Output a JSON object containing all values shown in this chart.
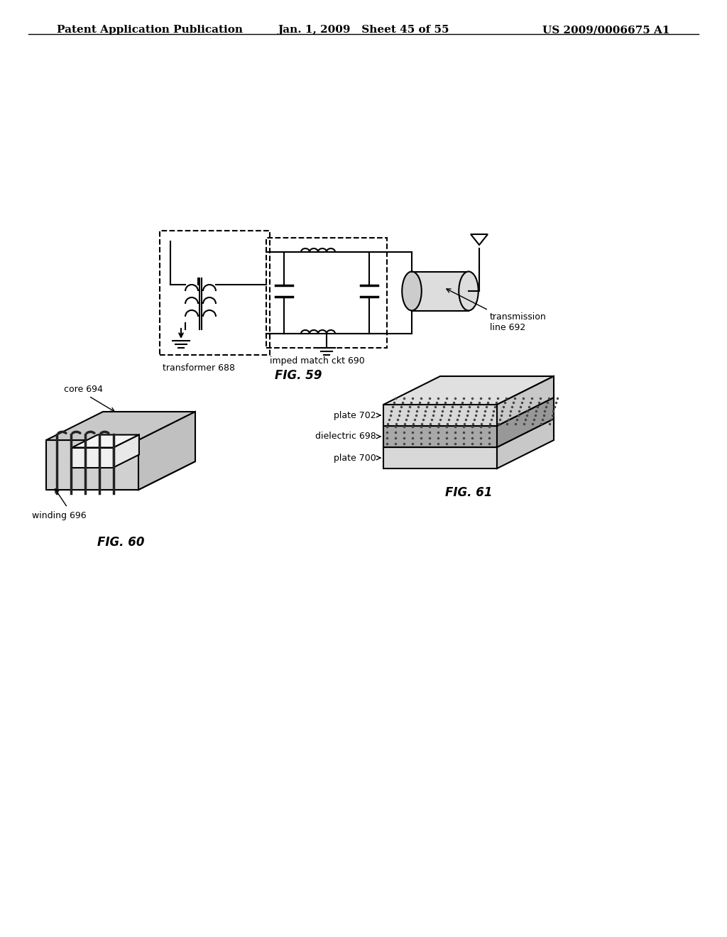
{
  "header_left": "Patent Application Publication",
  "header_mid": "Jan. 1, 2009   Sheet 45 of 55",
  "header_right": "US 2009/0006675 A1",
  "fig59_label": "FIG. 59",
  "fig60_label": "FIG. 60",
  "fig61_label": "FIG. 61",
  "label_transformer": "transformer 688",
  "label_imped": "imped match ckt 690",
  "label_transmission": "transmission\nline 692",
  "label_core": "core 694",
  "label_winding": "winding 696",
  "label_plate700": "plate 700",
  "label_dielectric": "dielectric 698",
  "label_plate702": "plate 702",
  "bg_color": "#ffffff",
  "line_color": "#000000",
  "dashed_color": "#000000",
  "gray_color": "#aaaaaa"
}
